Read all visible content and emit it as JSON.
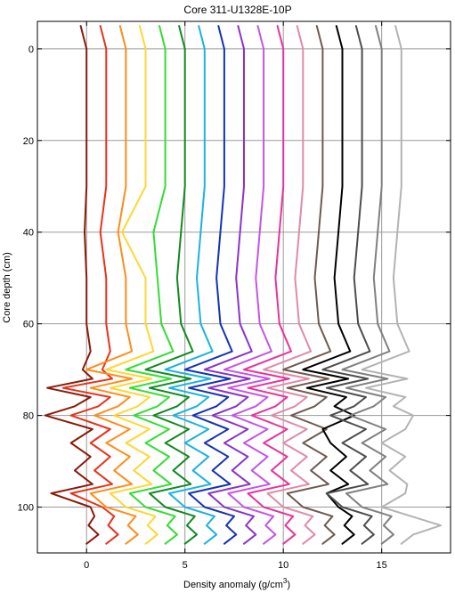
{
  "chart_data": {
    "type": "line",
    "title": "Core 311-U1328E-10P",
    "xlabel": "Density anomaly (g/cm",
    "xlabel_sup": "3",
    "xlabel_end": ")",
    "ylabel": "Core depth (cm)",
    "xlim": [
      -2.5,
      18.5
    ],
    "ylim": [
      -6,
      110
    ],
    "y_inverted": true,
    "grid": true,
    "x_ticks": [
      {
        "value": 0,
        "label": "0"
      },
      {
        "value": 5,
        "label": "5"
      },
      {
        "value": 10,
        "label": "10"
      },
      {
        "value": 15,
        "label": "15"
      }
    ],
    "y_ticks": [
      {
        "value": 0,
        "label": "0"
      },
      {
        "value": 20,
        "label": "20"
      },
      {
        "value": 40,
        "label": "40"
      },
      {
        "value": 60,
        "label": "60"
      },
      {
        "value": 80,
        "label": "80"
      },
      {
        "value": 100,
        "label": "100"
      }
    ],
    "depths": [
      -5,
      0,
      10,
      20,
      30,
      40,
      50,
      60,
      66,
      70,
      72,
      74,
      76,
      78,
      80,
      83,
      86,
      89,
      92,
      95,
      97,
      100,
      102,
      104,
      106,
      108
    ],
    "series": [
      {
        "color": "#8b1a0a",
        "values": [
          -0.3,
          0.0,
          0.0,
          0.0,
          0.0,
          -0.1,
          0.0,
          0.0,
          0.2,
          -0.2,
          0.3,
          -2.0,
          0.2,
          -0.6,
          -2.1,
          0.3,
          -0.8,
          0.2,
          -0.6,
          0.3,
          -1.8,
          0.2,
          0.4,
          0.1,
          0.6,
          0.0
        ]
      },
      {
        "color": "#e8321c",
        "values": [
          0.7,
          1.0,
          1.0,
          1.0,
          1.0,
          0.7,
          1.0,
          1.0,
          1.2,
          0.8,
          1.3,
          -1.2,
          1.2,
          0.6,
          -0.8,
          1.2,
          0.2,
          1.2,
          0.4,
          1.3,
          -0.8,
          0.8,
          1.4,
          1.1,
          1.6,
          1.0
        ]
      },
      {
        "color": "#ff8c1a",
        "values": [
          1.7,
          2.0,
          2.0,
          2.0,
          2.0,
          1.6,
          2.0,
          2.0,
          2.3,
          0.0,
          2.3,
          0.2,
          2.2,
          1.6,
          0.4,
          2.2,
          1.0,
          2.2,
          1.4,
          2.3,
          0.2,
          1.0,
          2.5,
          2.1,
          2.6,
          2.0
        ]
      },
      {
        "color": "#ffd633",
        "values": [
          2.7,
          3.0,
          3.0,
          3.0,
          3.0,
          1.8,
          3.0,
          3.0,
          3.4,
          1.0,
          3.3,
          1.2,
          3.2,
          2.6,
          1.4,
          3.2,
          2.0,
          3.2,
          2.4,
          3.3,
          1.2,
          2.0,
          3.5,
          3.1,
          3.6,
          3.0
        ]
      },
      {
        "color": "#33dd33",
        "values": [
          3.7,
          4.0,
          4.0,
          4.0,
          4.0,
          3.4,
          3.6,
          3.8,
          4.4,
          2.0,
          4.3,
          2.2,
          4.2,
          3.6,
          2.4,
          4.2,
          3.0,
          4.2,
          3.4,
          4.3,
          2.2,
          3.0,
          4.5,
          4.1,
          4.6,
          4.0
        ]
      },
      {
        "color": "#118a22",
        "values": [
          4.7,
          5.0,
          5.0,
          5.0,
          5.0,
          4.8,
          4.6,
          4.8,
          5.4,
          3.0,
          5.3,
          3.2,
          5.2,
          4.6,
          3.4,
          5.2,
          4.0,
          5.2,
          4.4,
          5.3,
          3.2,
          4.0,
          5.5,
          5.1,
          5.6,
          5.0
        ]
      },
      {
        "color": "#1ab2e0",
        "values": [
          5.7,
          6.0,
          6.0,
          6.0,
          6.0,
          5.8,
          5.6,
          5.8,
          6.4,
          4.0,
          6.3,
          4.2,
          6.2,
          5.6,
          4.4,
          6.2,
          5.0,
          6.2,
          5.4,
          6.3,
          4.2,
          5.0,
          6.5,
          6.1,
          6.6,
          6.0
        ]
      },
      {
        "color": "#1433b8",
        "values": [
          6.7,
          7.0,
          7.0,
          7.0,
          7.0,
          6.8,
          6.6,
          6.8,
          7.4,
          5.0,
          7.3,
          5.2,
          7.2,
          6.6,
          5.4,
          7.2,
          6.0,
          7.2,
          6.4,
          7.3,
          5.2,
          6.0,
          7.5,
          7.1,
          7.6,
          7.0
        ]
      },
      {
        "color": "#8a33cc",
        "values": [
          7.7,
          8.0,
          8.0,
          8.0,
          8.0,
          7.8,
          7.6,
          7.8,
          8.4,
          6.0,
          8.3,
          6.2,
          8.2,
          7.6,
          6.4,
          8.2,
          7.0,
          8.2,
          7.4,
          8.3,
          6.2,
          7.0,
          8.5,
          8.1,
          8.6,
          8.0
        ]
      },
      {
        "color": "#c455e6",
        "values": [
          8.7,
          9.0,
          9.0,
          9.0,
          9.0,
          8.8,
          8.6,
          8.8,
          9.4,
          7.0,
          9.3,
          7.2,
          9.2,
          8.6,
          7.4,
          9.2,
          8.0,
          9.2,
          8.4,
          9.3,
          7.2,
          8.0,
          9.5,
          9.1,
          9.6,
          9.0
        ]
      },
      {
        "color": "#e8339a",
        "values": [
          9.7,
          10.0,
          10.0,
          10.0,
          10.0,
          9.8,
          9.6,
          9.8,
          10.4,
          8.0,
          10.3,
          8.2,
          10.2,
          9.6,
          8.4,
          10.2,
          9.0,
          10.2,
          9.4,
          10.3,
          8.2,
          9.0,
          10.5,
          10.1,
          10.6,
          10.0
        ]
      },
      {
        "color": "#e08aa8",
        "values": [
          10.7,
          11.0,
          11.0,
          11.0,
          11.0,
          10.8,
          10.6,
          10.8,
          11.4,
          9.0,
          11.3,
          9.2,
          11.2,
          10.6,
          9.4,
          11.2,
          10.0,
          11.2,
          10.4,
          11.3,
          9.2,
          10.0,
          11.5,
          11.1,
          11.6,
          11.0
        ]
      },
      {
        "color": "#6e5a50",
        "values": [
          11.7,
          12.0,
          12.0,
          12.0,
          12.0,
          11.8,
          11.6,
          11.8,
          12.4,
          10.0,
          12.3,
          10.2,
          12.2,
          11.6,
          10.4,
          12.2,
          11.0,
          12.2,
          11.4,
          12.3,
          10.2,
          11.0,
          12.5,
          12.1,
          12.6,
          12.0
        ]
      },
      {
        "color": "#000000",
        "values": [
          12.7,
          13.0,
          13.0,
          13.0,
          13.0,
          12.8,
          12.6,
          12.8,
          13.4,
          11.0,
          13.3,
          11.2,
          13.2,
          12.6,
          13.6,
          12.0,
          12.4,
          13.2,
          12.4,
          13.3,
          12.2,
          12.8,
          13.5,
          13.1,
          13.6,
          13.0
        ]
      },
      {
        "color": "#4d4d4d",
        "values": [
          13.7,
          14.0,
          14.0,
          14.0,
          14.0,
          13.8,
          13.6,
          13.8,
          14.4,
          12.0,
          14.3,
          12.2,
          14.2,
          13.6,
          12.4,
          14.2,
          13.0,
          14.2,
          13.4,
          14.3,
          12.2,
          13.0,
          14.5,
          14.1,
          14.6,
          14.0
        ]
      },
      {
        "color": "#808080",
        "values": [
          14.7,
          15.0,
          15.0,
          15.0,
          15.0,
          14.8,
          14.6,
          14.8,
          15.4,
          13.0,
          15.3,
          13.2,
          15.2,
          14.6,
          13.4,
          15.2,
          14.0,
          15.2,
          14.4,
          15.3,
          13.2,
          14.0,
          15.5,
          15.1,
          15.6,
          15.0
        ]
      },
      {
        "color": "#b3b3b3",
        "values": [
          15.7,
          16.0,
          16.0,
          16.0,
          16.0,
          15.8,
          15.6,
          15.8,
          16.4,
          14.0,
          16.3,
          14.2,
          16.2,
          15.6,
          16.6,
          16.2,
          15.0,
          16.2,
          15.4,
          16.3,
          16.2,
          15.0,
          16.5,
          18.0,
          16.6,
          16.0
        ]
      }
    ]
  }
}
